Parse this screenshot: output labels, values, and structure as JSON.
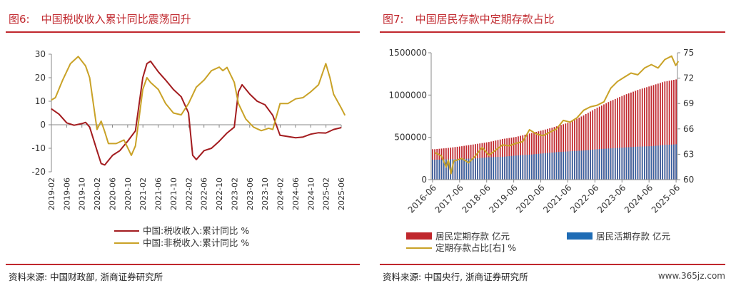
{
  "left": {
    "fig_label": "图6:",
    "title": "中国税收收入累计同比震荡回升",
    "source": "资料来源: 中国财政部, 浙商证券研究所",
    "chart_data": {
      "type": "line",
      "x": [
        "2019-02",
        "2019-06",
        "2019-10",
        "2020-02",
        "2020-06",
        "2020-10",
        "2021-02",
        "2021-06",
        "2021-10",
        "2022-02",
        "2022-06",
        "2022-10",
        "2023-02",
        "2023-06",
        "2023-10",
        "2024-02",
        "2024-06",
        "2024-10",
        "2025-02",
        "2025-06"
      ],
      "xlabel": "",
      "ylabel": "",
      "ylim": [
        -20,
        30
      ],
      "yticks": [
        -20,
        -10,
        0,
        10,
        20,
        30
      ],
      "legend_position": "bottom",
      "series": [
        {
          "name": "中国:税收收入:累计同比 %",
          "color": "#a31c1f",
          "points": [
            [
              2019.08,
              6.8
            ],
            [
              2019.25,
              4.5
            ],
            [
              2019.42,
              0.8
            ],
            [
              2019.58,
              -0.2
            ],
            [
              2019.75,
              0.5
            ],
            [
              2019.83,
              1.0
            ],
            [
              2019.92,
              -1.0
            ],
            [
              2020.08,
              -11
            ],
            [
              2020.17,
              -16.5
            ],
            [
              2020.25,
              -17.1
            ],
            [
              2020.42,
              -13
            ],
            [
              2020.58,
              -11
            ],
            [
              2020.75,
              -7
            ],
            [
              2020.92,
              -2.6
            ],
            [
              2021.08,
              20
            ],
            [
              2021.17,
              26
            ],
            [
              2021.25,
              27
            ],
            [
              2021.42,
              22.5
            ],
            [
              2021.58,
              19
            ],
            [
              2021.75,
              15
            ],
            [
              2021.92,
              11.9
            ],
            [
              2022.08,
              5
            ],
            [
              2022.17,
              -13
            ],
            [
              2022.25,
              -14.8
            ],
            [
              2022.42,
              -11
            ],
            [
              2022.58,
              -10
            ],
            [
              2022.75,
              -7
            ],
            [
              2022.92,
              -3.5
            ],
            [
              2023.08,
              -1
            ],
            [
              2023.17,
              14
            ],
            [
              2023.25,
              17
            ],
            [
              2023.42,
              13
            ],
            [
              2023.58,
              10
            ],
            [
              2023.75,
              8.5
            ],
            [
              2023.92,
              4
            ],
            [
              2024.08,
              -4.5
            ],
            [
              2024.25,
              -5
            ],
            [
              2024.42,
              -5.5
            ],
            [
              2024.58,
              -5.2
            ],
            [
              2024.75,
              -4
            ],
            [
              2024.92,
              -3.4
            ],
            [
              2025.08,
              -3.5
            ],
            [
              2025.25,
              -2
            ],
            [
              2025.42,
              -1.2
            ]
          ]
        },
        {
          "name": "中国:非税收入:累计同比 %",
          "color": "#c9a227",
          "points": [
            [
              2019.08,
              10.5
            ],
            [
              2019.17,
              11.5
            ],
            [
              2019.33,
              19
            ],
            [
              2019.5,
              26
            ],
            [
              2019.67,
              29
            ],
            [
              2019.83,
              25
            ],
            [
              2019.92,
              20
            ],
            [
              2020.08,
              -2
            ],
            [
              2020.17,
              1.5
            ],
            [
              2020.25,
              -3
            ],
            [
              2020.33,
              -8
            ],
            [
              2020.5,
              -8
            ],
            [
              2020.67,
              -6.5
            ],
            [
              2020.83,
              -13
            ],
            [
              2020.92,
              -9
            ],
            [
              2021.08,
              15
            ],
            [
              2021.17,
              20
            ],
            [
              2021.25,
              18
            ],
            [
              2021.42,
              15
            ],
            [
              2021.58,
              9
            ],
            [
              2021.75,
              5
            ],
            [
              2021.92,
              4.2
            ],
            [
              2022.08,
              9
            ],
            [
              2022.25,
              16
            ],
            [
              2022.42,
              19
            ],
            [
              2022.58,
              23
            ],
            [
              2022.75,
              24.5
            ],
            [
              2022.83,
              23
            ],
            [
              2022.92,
              24.4
            ],
            [
              2023.08,
              18
            ],
            [
              2023.17,
              9
            ],
            [
              2023.33,
              2.5
            ],
            [
              2023.5,
              -1
            ],
            [
              2023.67,
              -2.5
            ],
            [
              2023.83,
              -1.5
            ],
            [
              2023.92,
              -2
            ],
            [
              2024.08,
              9
            ],
            [
              2024.25,
              9
            ],
            [
              2024.42,
              11
            ],
            [
              2024.58,
              11.5
            ],
            [
              2024.75,
              14
            ],
            [
              2024.92,
              17
            ],
            [
              2025.08,
              26
            ],
            [
              2025.17,
              20
            ],
            [
              2025.25,
              13
            ],
            [
              2025.42,
              7
            ],
            [
              2025.5,
              4
            ]
          ]
        }
      ]
    }
  },
  "right": {
    "fig_label": "图7:",
    "title": "中国居民存款中定期存款占比",
    "source": "资料来源: 中国央行, 浙商证券研究所",
    "watermark": "www.365jz.com",
    "chart_data": {
      "type": "bar",
      "x": [
        "2016-06",
        "2017-06",
        "2018-06",
        "2019-06",
        "2020-06",
        "2021-06",
        "2022-06",
        "2023-06",
        "2024-06",
        "2025-06"
      ],
      "ylim_left": [
        0,
        1500000
      ],
      "yticks_left": [
        0,
        500000,
        1000000,
        1500000
      ],
      "ylim_right": [
        60,
        75
      ],
      "yticks_right": [
        60,
        63,
        66,
        69,
        72,
        75
      ],
      "legend_position": "bottom",
      "series": [
        {
          "name": "居民定期存款 亿元",
          "type": "bar",
          "axis": "left",
          "color": "#c0272d",
          "points": [
            [
              2016.5,
              360000
            ],
            [
              2017.0,
              375000
            ],
            [
              2017.5,
              395000
            ],
            [
              2018.0,
              420000
            ],
            [
              2018.5,
              445000
            ],
            [
              2019.0,
              480000
            ],
            [
              2019.5,
              505000
            ],
            [
              2020.0,
              545000
            ],
            [
              2020.5,
              585000
            ],
            [
              2021.0,
              630000
            ],
            [
              2021.5,
              680000
            ],
            [
              2022.0,
              760000
            ],
            [
              2022.5,
              850000
            ],
            [
              2023.0,
              930000
            ],
            [
              2023.5,
              1000000
            ],
            [
              2024.0,
              1060000
            ],
            [
              2024.5,
              1110000
            ],
            [
              2025.0,
              1160000
            ],
            [
              2025.5,
              1190000
            ]
          ]
        },
        {
          "name": "居民活期存款 亿元",
          "type": "bar",
          "axis": "left",
          "color": "#1f6cb5",
          "points": [
            [
              2016.5,
              235000
            ],
            [
              2017.0,
              240000
            ],
            [
              2017.5,
              245000
            ],
            [
              2018.0,
              250000
            ],
            [
              2018.5,
              265000
            ],
            [
              2019.0,
              270000
            ],
            [
              2019.5,
              285000
            ],
            [
              2020.0,
              295000
            ],
            [
              2020.5,
              310000
            ],
            [
              2021.0,
              325000
            ],
            [
              2021.5,
              335000
            ],
            [
              2022.0,
              345000
            ],
            [
              2022.5,
              360000
            ],
            [
              2023.0,
              370000
            ],
            [
              2023.5,
              380000
            ],
            [
              2024.0,
              390000
            ],
            [
              2024.5,
              395000
            ],
            [
              2025.0,
              410000
            ],
            [
              2025.5,
              420000
            ]
          ]
        },
        {
          "name": "定期存款占比[右] %",
          "type": "line",
          "axis": "right",
          "color": "#c9a227",
          "points": [
            [
              2016.5,
              63.2
            ],
            [
              2016.75,
              62.8
            ],
            [
              2016.92,
              61.5
            ],
            [
              2017.0,
              62.3
            ],
            [
              2017.1,
              60.7
            ],
            [
              2017.2,
              62.2
            ],
            [
              2017.5,
              62.5
            ],
            [
              2017.75,
              62.0
            ],
            [
              2018.0,
              62.8
            ],
            [
              2018.25,
              63.8
            ],
            [
              2018.5,
              62.9
            ],
            [
              2018.75,
              63.5
            ],
            [
              2019.0,
              64.1
            ],
            [
              2019.25,
              64.0
            ],
            [
              2019.5,
              64.3
            ],
            [
              2019.75,
              64.5
            ],
            [
              2020.0,
              65.9
            ],
            [
              2020.25,
              65.4
            ],
            [
              2020.5,
              65.2
            ],
            [
              2020.75,
              65.6
            ],
            [
              2021.0,
              66.0
            ],
            [
              2021.25,
              67.0
            ],
            [
              2021.5,
              66.8
            ],
            [
              2021.75,
              67.3
            ],
            [
              2022.0,
              68.2
            ],
            [
              2022.25,
              68.6
            ],
            [
              2022.5,
              68.8
            ],
            [
              2022.75,
              69.2
            ],
            [
              2023.0,
              70.8
            ],
            [
              2023.25,
              71.6
            ],
            [
              2023.5,
              72.1
            ],
            [
              2023.75,
              72.6
            ],
            [
              2024.0,
              72.4
            ],
            [
              2024.25,
              73.2
            ],
            [
              2024.5,
              73.6
            ],
            [
              2024.75,
              73.2
            ],
            [
              2025.0,
              74.2
            ],
            [
              2025.25,
              74.6
            ],
            [
              2025.4,
              73.5
            ],
            [
              2025.5,
              74.0
            ]
          ]
        }
      ]
    }
  }
}
